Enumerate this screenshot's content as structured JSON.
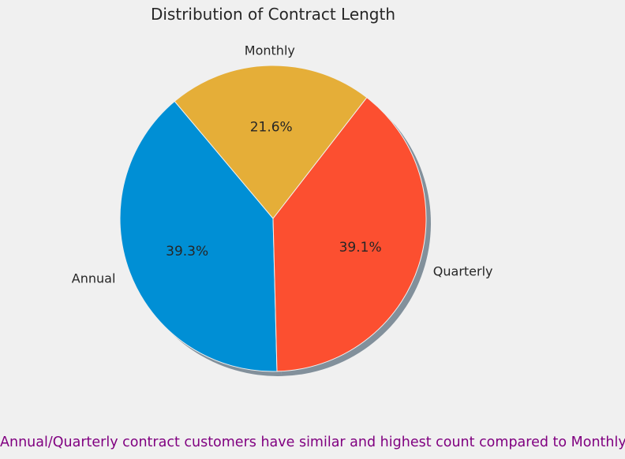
{
  "chart_data": {
    "type": "pie",
    "title": "Distribution of Contract Length",
    "slices": [
      {
        "label": "Annual",
        "percent": 39.3,
        "pct_label": "39.3%",
        "color": "#008fd5"
      },
      {
        "label": "Quarterly",
        "percent": 39.1,
        "pct_label": "39.1%",
        "color": "#fc4f30"
      },
      {
        "label": "Monthly",
        "percent": 21.6,
        "pct_label": "21.6%",
        "color": "#e5ae38"
      }
    ],
    "shadow": true,
    "legend": "none",
    "grid": false
  },
  "caption": {
    "text": "Annual/Quarterly contract customers have similar and highest count compared to Monthly",
    "color": "#800080"
  }
}
